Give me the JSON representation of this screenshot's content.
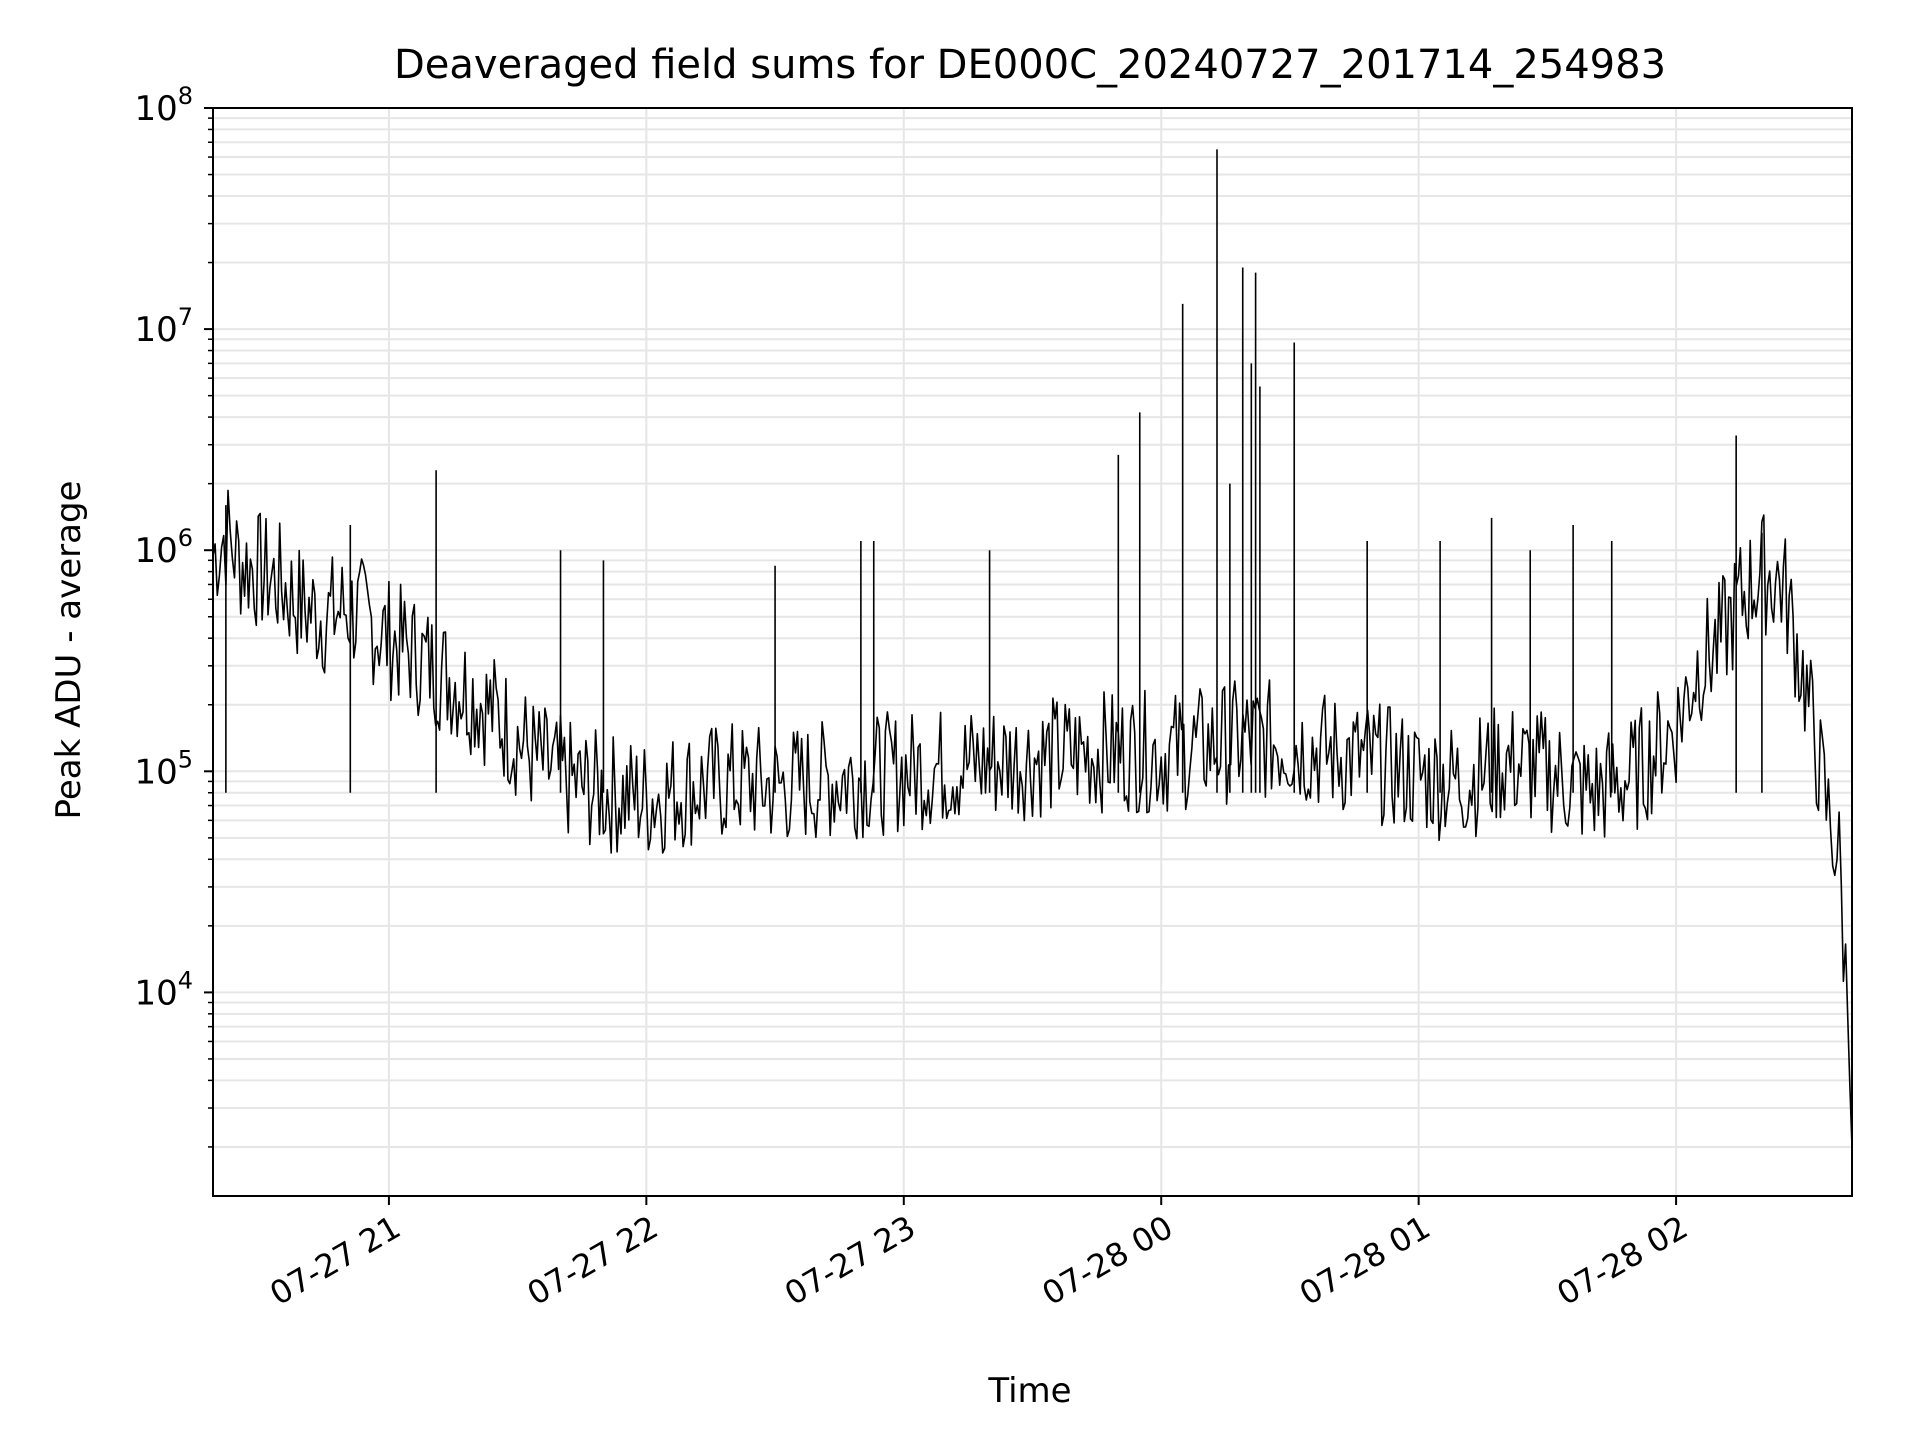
{
  "chart_data": {
    "type": "line",
    "title": "Deaveraged field sums for DE000C_20240727_201714_254983",
    "xlabel": "Time",
    "ylabel": "Peak ADU - average",
    "xscale": "time",
    "yscale": "log",
    "xlim": [
      "2024-07-27 20:19",
      "2024-07-28 02:41"
    ],
    "ylim": [
      1200,
      100000000
    ],
    "grid": true,
    "line_color": "#000000",
    "grid_color": "#e6e6e6",
    "xticks": [
      {
        "value": "2024-07-27 21:00",
        "label": "07-27 21"
      },
      {
        "value": "2024-07-27 22:00",
        "label": "07-27 22"
      },
      {
        "value": "2024-07-27 23:00",
        "label": "07-27 23"
      },
      {
        "value": "2024-07-28 00:00",
        "label": "07-28 00"
      },
      {
        "value": "2024-07-28 01:00",
        "label": "07-28 01"
      },
      {
        "value": "2024-07-28 02:00",
        "label": "07-28 02"
      }
    ],
    "yticks": [
      {
        "value": 10000,
        "base": "10",
        "exp": "4"
      },
      {
        "value": 100000,
        "base": "10",
        "exp": "5"
      },
      {
        "value": 1000000,
        "base": "10",
        "exp": "6"
      },
      {
        "value": 10000000,
        "base": "10",
        "exp": "7"
      },
      {
        "value": 100000000,
        "base": "10",
        "exp": "8"
      }
    ],
    "series": [
      {
        "x": [
          "2024-07-27 20:19",
          "2024-07-27 20:22",
          "2024-07-27 20:25",
          "2024-07-27 20:30",
          "2024-07-27 20:35",
          "2024-07-27 20:40",
          "2024-07-27 20:45",
          "2024-07-27 20:50",
          "2024-07-27 20:55",
          "2024-07-27 21:00",
          "2024-07-27 21:05",
          "2024-07-27 21:10",
          "2024-07-27 21:15",
          "2024-07-27 21:20",
          "2024-07-27 21:25",
          "2024-07-27 21:30",
          "2024-07-27 21:35",
          "2024-07-27 21:40",
          "2024-07-27 21:45",
          "2024-07-27 21:50",
          "2024-07-27 21:55",
          "2024-07-27 22:00",
          "2024-07-27 22:10",
          "2024-07-27 22:20",
          "2024-07-27 22:30",
          "2024-07-27 22:40",
          "2024-07-27 22:50",
          "2024-07-27 23:00",
          "2024-07-27 23:10",
          "2024-07-27 23:20",
          "2024-07-27 23:30",
          "2024-07-27 23:40",
          "2024-07-27 23:50",
          "2024-07-28 00:00",
          "2024-07-28 00:10",
          "2024-07-28 00:20",
          "2024-07-28 00:30",
          "2024-07-28 00:40",
          "2024-07-28 00:50",
          "2024-07-28 01:00",
          "2024-07-28 01:10",
          "2024-07-28 01:20",
          "2024-07-28 01:30",
          "2024-07-28 01:40",
          "2024-07-28 01:50",
          "2024-07-28 02:00",
          "2024-07-28 02:05",
          "2024-07-28 02:10",
          "2024-07-28 02:15",
          "2024-07-28 02:20",
          "2024-07-28 02:25",
          "2024-07-28 02:30",
          "2024-07-28 02:35",
          "2024-07-28 02:38",
          "2024-07-28 02:40",
          "2024-07-28 02:41"
        ],
        "y": [
          950000,
          1200000,
          900000,
          800000,
          700000,
          550000,
          500000,
          550000,
          480000,
          400000,
          350000,
          300000,
          260000,
          220000,
          180000,
          140000,
          110000,
          95000,
          85000,
          80000,
          78000,
          75000,
          85000,
          90000,
          85000,
          90000,
          95000,
          100000,
          105000,
          110000,
          115000,
          120000,
          125000,
          120000,
          130000,
          140000,
          135000,
          120000,
          110000,
          95000,
          90000,
          110000,
          100000,
          80000,
          95000,
          160000,
          300000,
          380000,
          600000,
          800000,
          700000,
          250000,
          70000,
          40000,
          8000,
          2000
        ]
      }
    ],
    "spikes": [
      {
        "x": "2024-07-27 20:22",
        "y": 1600000
      },
      {
        "x": "2024-07-27 20:51",
        "y": 1300000
      },
      {
        "x": "2024-07-27 21:11",
        "y": 2300000
      },
      {
        "x": "2024-07-27 21:40",
        "y": 1000000
      },
      {
        "x": "2024-07-27 21:50",
        "y": 900000
      },
      {
        "x": "2024-07-27 22:30",
        "y": 850000
      },
      {
        "x": "2024-07-27 22:50",
        "y": 1100000
      },
      {
        "x": "2024-07-27 22:53",
        "y": 1100000
      },
      {
        "x": "2024-07-27 23:20",
        "y": 1000000
      },
      {
        "x": "2024-07-27 23:50",
        "y": 2700000
      },
      {
        "x": "2024-07-27 23:55",
        "y": 4200000
      },
      {
        "x": "2024-07-28 00:05",
        "y": 13000000
      },
      {
        "x": "2024-07-28 00:13",
        "y": 65000000
      },
      {
        "x": "2024-07-28 00:16",
        "y": 2000000
      },
      {
        "x": "2024-07-28 00:19",
        "y": 19000000
      },
      {
        "x": "2024-07-28 00:21",
        "y": 7000000
      },
      {
        "x": "2024-07-28 00:22",
        "y": 18000000
      },
      {
        "x": "2024-07-28 00:23",
        "y": 5500000
      },
      {
        "x": "2024-07-28 00:31",
        "y": 8700000
      },
      {
        "x": "2024-07-28 00:48",
        "y": 1100000
      },
      {
        "x": "2024-07-28 01:05",
        "y": 1100000
      },
      {
        "x": "2024-07-28 01:17",
        "y": 1400000
      },
      {
        "x": "2024-07-28 01:26",
        "y": 1000000
      },
      {
        "x": "2024-07-28 01:36",
        "y": 1300000
      },
      {
        "x": "2024-07-28 01:45",
        "y": 1100000
      },
      {
        "x": "2024-07-28 02:14",
        "y": 3300000
      },
      {
        "x": "2024-07-28 02:20",
        "y": 1200000
      }
    ]
  }
}
